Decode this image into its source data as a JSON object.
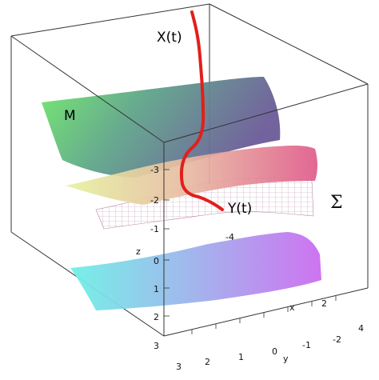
{
  "figure": {
    "labels": {
      "X": "X(t)",
      "M": "M",
      "Y": "Y(t)",
      "Sigma": "Σ",
      "z_axis": "z",
      "x_axis": "x",
      "y_axis": "y"
    },
    "ticks": {
      "z_upper": [
        "-3",
        "-2",
        "-1"
      ],
      "z_lower": [
        "0",
        "1",
        "2",
        "3"
      ],
      "x_axis_ticks": [
        "-4",
        "2",
        "4"
      ],
      "y_axis_ticks": [
        "3",
        "2",
        "1",
        "0",
        "-1",
        "-2"
      ]
    },
    "colors": {
      "curve": "#e0201c",
      "frame": "#333333"
    }
  }
}
